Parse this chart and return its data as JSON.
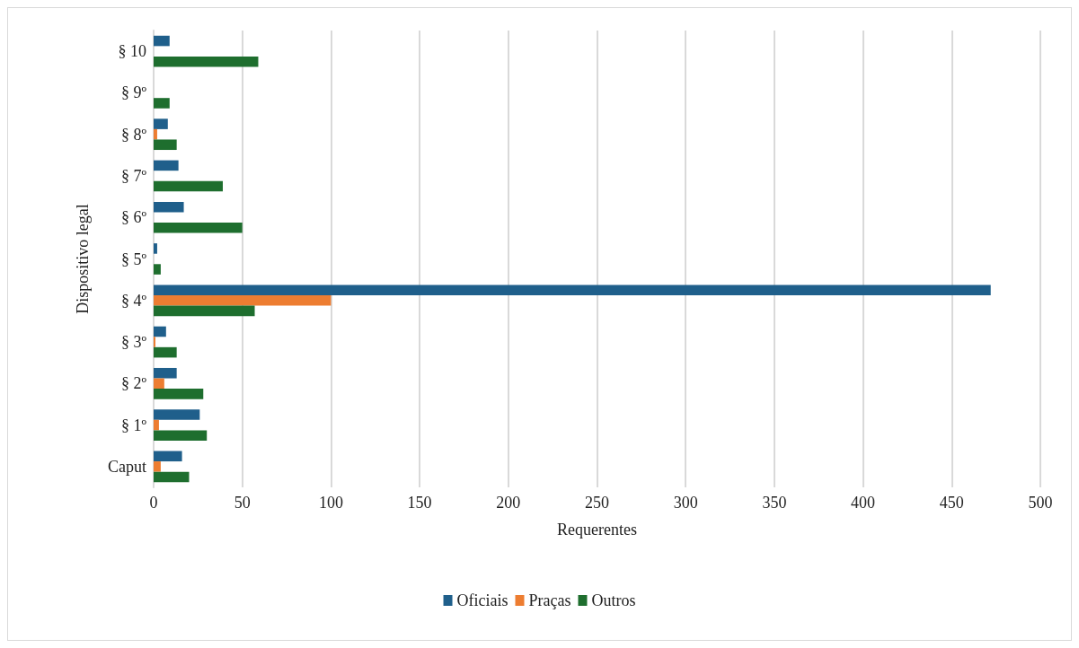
{
  "chart_data": {
    "type": "bar",
    "orientation": "horizontal",
    "xlabel": "Requerentes",
    "ylabel": "Dispositivo legal",
    "categories": [
      "§ 10",
      "§ 9º",
      "§ 8º",
      "§ 7º",
      "§ 6º",
      "§ 5º",
      "§ 4º",
      "§ 3º",
      "§ 2º",
      "§ 1º",
      "Caput"
    ],
    "series": [
      {
        "name": "Oficiais",
        "color": "#1f5f8b",
        "values": [
          9,
          null,
          8,
          14,
          17,
          2,
          472,
          7,
          13,
          26,
          16
        ]
      },
      {
        "name": "Praças",
        "color": "#ed7d31",
        "values": [
          null,
          null,
          2,
          null,
          null,
          null,
          100,
          1,
          6,
          3,
          4
        ]
      },
      {
        "name": "Outros",
        "color": "#1e6e2e",
        "values": [
          59,
          9,
          13,
          39,
          50,
          4,
          57,
          13,
          28,
          30,
          20
        ]
      }
    ],
    "xlim": [
      0,
      500
    ],
    "xticks": [
      0,
      50,
      100,
      150,
      200,
      250,
      300,
      350,
      400,
      450,
      500
    ],
    "grid": "x",
    "legend": "bottom"
  }
}
